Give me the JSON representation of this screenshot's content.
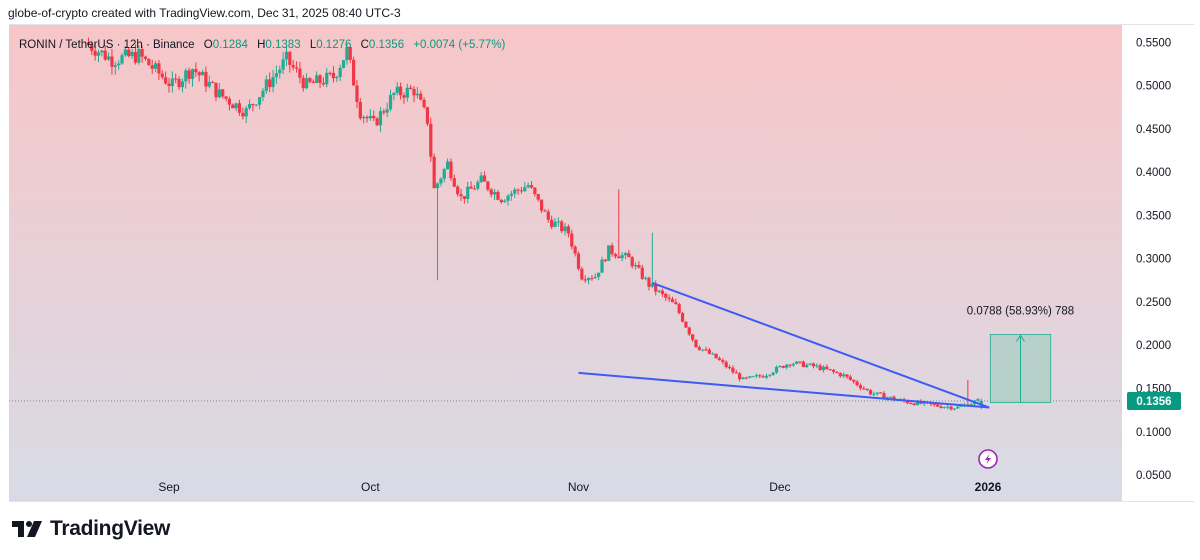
{
  "credit": "globe-of-crypto created with TradingView.com, Dec 31, 2025 08:40 UTC-3",
  "symbol": {
    "name": "RONIN / TetherUS · 12h · Binance",
    "o_label": "O",
    "o": "0.1284",
    "h_label": "H",
    "h": "0.1383",
    "l_label": "L",
    "l": "0.1276",
    "c_label": "C",
    "c": "0.1356",
    "change": "+0.0074 (+5.77%)"
  },
  "brand": "TradingView",
  "colors": {
    "bull": "#22ab94",
    "bear": "#f23645",
    "trendline": "#3d5bf5",
    "bg_top": "#f7c6c8",
    "bg_bottom": "#d8dbe6",
    "price_label": "#089981",
    "measure_fill": "#a8cfc3",
    "measure_line": "#22ab94",
    "alert_icon": "#9c27b0"
  },
  "chart_data": {
    "type": "candlestick",
    "timeframe": "12h",
    "ylim": [
      0.02,
      0.57
    ],
    "y_ticks": [
      "0.5500",
      "0.5000",
      "0.4500",
      "0.4000",
      "0.3500",
      "0.3000",
      "0.2500",
      "0.2000",
      "0.1500",
      "0.1000",
      "0.0500"
    ],
    "x_ticks": [
      "Sep",
      "Oct",
      "Nov",
      "Dec",
      "2026"
    ],
    "last_price": "0.1356",
    "last_price_value": 0.1356,
    "ohlc_last": {
      "open": 0.1284,
      "high": 0.1383,
      "low": 0.1276,
      "close": 0.1356
    },
    "price_path": [
      [
        "Aug 20",
        0.55
      ],
      [
        "Aug 24",
        0.53
      ],
      [
        "Aug 28",
        0.535
      ],
      [
        "Sep 2",
        0.5
      ],
      [
        "Sep 5",
        0.52
      ],
      [
        "Sep 9",
        0.49
      ],
      [
        "Sep 13",
        0.47
      ],
      [
        "Sep 16",
        0.5
      ],
      [
        "Sep 19",
        0.53
      ],
      [
        "Sep 22",
        0.5
      ],
      [
        "Sep 26",
        0.51
      ],
      [
        "Sep 28",
        0.54
      ],
      [
        "Sep 30",
        0.47
      ],
      [
        "Oct 2",
        0.455
      ],
      [
        "Oct 5",
        0.49
      ],
      [
        "Oct 8",
        0.495
      ],
      [
        "Oct 10",
        0.46
      ],
      [
        "Oct 11",
        0.38
      ],
      [
        "Oct 13",
        0.41
      ],
      [
        "Oct 15",
        0.37
      ],
      [
        "Oct 18",
        0.39
      ],
      [
        "Oct 21",
        0.37
      ],
      [
        "Oct 25",
        0.385
      ],
      [
        "Oct 28",
        0.345
      ],
      [
        "Oct 31",
        0.33
      ],
      [
        "Nov 2",
        0.28
      ],
      [
        "Nov 4",
        0.28
      ],
      [
        "Nov 6",
        0.31
      ],
      [
        "Nov 9",
        0.3
      ],
      [
        "Nov 12",
        0.27
      ],
      [
        "Nov 16",
        0.245
      ],
      [
        "Nov 19",
        0.2
      ],
      [
        "Nov 22",
        0.185
      ],
      [
        "Nov 26",
        0.16
      ],
      [
        "Nov 29",
        0.165
      ],
      [
        "Dec 3",
        0.18
      ],
      [
        "Dec 7",
        0.175
      ],
      [
        "Dec 11",
        0.165
      ],
      [
        "Dec 15",
        0.145
      ],
      [
        "Dec 20",
        0.135
      ],
      [
        "Dec 25",
        0.13
      ],
      [
        "Dec 28",
        0.128
      ],
      [
        "Dec 31",
        0.1356
      ]
    ],
    "wick_spikes": [
      {
        "date": "Oct 11",
        "low": 0.275
      },
      {
        "date": "Nov 7",
        "high": 0.38
      },
      {
        "date": "Nov 12",
        "high": 0.33
      },
      {
        "date": "Dec 29",
        "high": 0.16
      }
    ],
    "trendlines": [
      {
        "name": "upper",
        "start": [
          "Nov 12",
          0.272
        ],
        "end": [
          "Dec 31",
          0.128
        ]
      },
      {
        "name": "lower",
        "start": [
          "Nov 1",
          0.168
        ],
        "end": [
          "Dec 31",
          0.128
        ]
      }
    ],
    "measurement": {
      "label": "0.0788 (58.93%) 788",
      "from_price": 0.1337,
      "to_price": 0.2125,
      "start": "Dec 31",
      "end": "Jan 9"
    }
  }
}
